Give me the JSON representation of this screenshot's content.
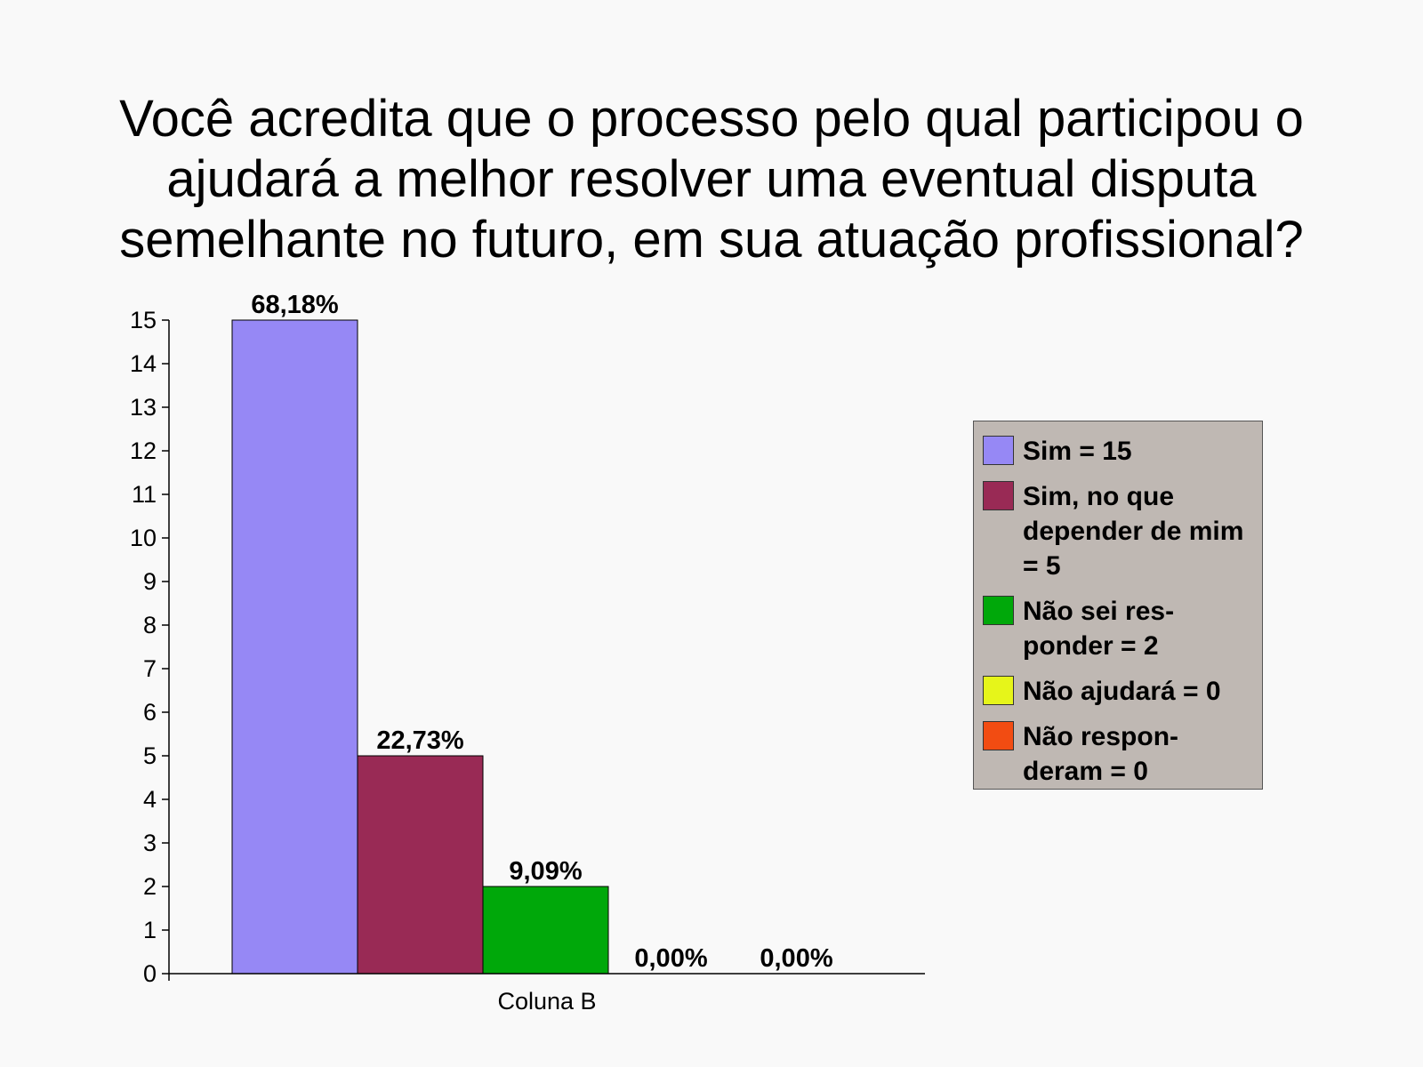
{
  "title": "Você acredita que o processo pelo qual participou o\najudará a melhor resolver uma eventual disputa\nsemelhante no futuro, em sua atuação profissional?",
  "chart_data": {
    "type": "bar",
    "title": "Você acredita que o processo pelo qual participou o ajudará a melhor resolver uma eventual disputa semelhante no futuro, em sua atuação profissional?",
    "xlabel": "Coluna B",
    "ylabel": "",
    "ylim": [
      0,
      15
    ],
    "yticks": [
      0,
      1,
      2,
      3,
      4,
      5,
      6,
      7,
      8,
      9,
      10,
      11,
      12,
      13,
      14,
      15
    ],
    "grid": false,
    "legend_position": "right",
    "series": [
      {
        "name": "Sim = 15",
        "value": 15,
        "label": "68,18%",
        "color": "#9688f5"
      },
      {
        "name": "Sim, no que depender de mim = 5",
        "value": 5,
        "label": "22,73%",
        "color": "#992a55"
      },
      {
        "name": "Não sei res-ponder = 2",
        "value": 2,
        "label": "9,09%",
        "color": "#00a80a"
      },
      {
        "name": "Não ajudará = 0",
        "value": 0,
        "label": "0,00%",
        "color": "#e6f51a"
      },
      {
        "name": "Não respon-deram = 0",
        "value": 0,
        "label": "0,00%",
        "color": "#f24c12"
      }
    ]
  },
  "legend": {
    "items": [
      {
        "label": "Sim = 15",
        "color": "#9688f5"
      },
      {
        "label": "Sim, no que depender de mim = 5",
        "color": "#992a55"
      },
      {
        "label": "Não sei res-ponder = 2",
        "color": "#00a80a"
      },
      {
        "label": "Não ajudará = 0",
        "color": "#e6f51a"
      },
      {
        "label": "Não respon-deram = 0",
        "color": "#f24c12"
      }
    ]
  }
}
